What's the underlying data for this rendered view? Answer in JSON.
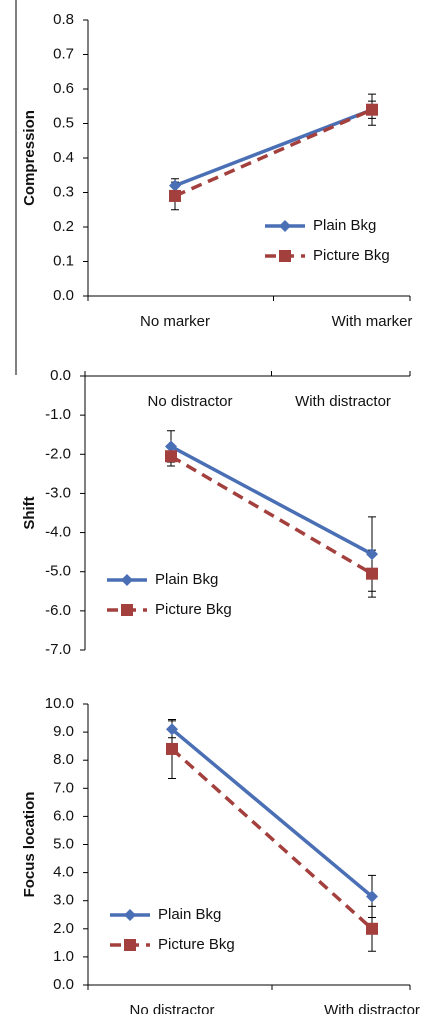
{
  "chart_data": [
    {
      "type": "line",
      "y_label": "Compression",
      "categories": [
        "No marker",
        "With marker"
      ],
      "ylim": [
        0,
        0.8
      ],
      "yticks": [
        {
          "value": 0,
          "label": "0.0"
        },
        0.1,
        0.2,
        0.3,
        0.4,
        0.5,
        0.6,
        0.7,
        0.8
      ],
      "xaxis_position": "bottom",
      "legend": "lower right",
      "series": [
        {
          "name": "Plain Bkg",
          "color": "#4a6fb5",
          "dashed": false,
          "marker": "diamond",
          "values": [
            0.32,
            0.54
          ],
          "errors": [
            0.02,
            0.045
          ]
        },
        {
          "name": "Picture Bkg",
          "color": "#a3403d",
          "dashed": true,
          "marker": "square",
          "values": [
            0.29,
            0.54
          ],
          "errors": [
            0.04,
            0.025
          ]
        }
      ]
    },
    {
      "type": "line",
      "y_label": "Shift",
      "categories": [
        "No distractor",
        "With distractor"
      ],
      "ylim": [
        -7,
        0
      ],
      "yticks": [
        {
          "value": 0,
          "label": "0.0"
        },
        {
          "value": -1,
          "label": "-1.0"
        },
        {
          "value": -2,
          "label": "-2.0"
        },
        {
          "value": -3,
          "label": "-3.0"
        },
        {
          "value": -4,
          "label": "-4.0"
        },
        {
          "value": -5,
          "label": "-5.0"
        },
        {
          "value": -6,
          "label": "-6.0"
        },
        {
          "value": -7,
          "label": "-7.0"
        }
      ],
      "xaxis_position": "top",
      "legend": "lower left",
      "series": [
        {
          "name": "Plain Bkg",
          "color": "#4a6fb5",
          "dashed": false,
          "marker": "diamond",
          "values": [
            -1.8,
            -4.55
          ],
          "errors": [
            0.4,
            0.95
          ]
        },
        {
          "name": "Picture Bkg",
          "color": "#a3403d",
          "dashed": true,
          "marker": "square",
          "values": [
            -2.05,
            -5.05
          ],
          "errors": [
            0.25,
            0.6
          ]
        }
      ]
    },
    {
      "type": "line",
      "y_label": "Focus location",
      "categories": [
        "No distractor",
        "With distractor"
      ],
      "ylim": [
        0,
        10
      ],
      "yticks": [
        {
          "value": 0,
          "label": "0.0"
        },
        {
          "value": 1,
          "label": "1.0"
        },
        {
          "value": 2,
          "label": "2.0"
        },
        {
          "value": 3,
          "label": "3.0"
        },
        {
          "value": 4,
          "label": "4.0"
        },
        {
          "value": 5,
          "label": "5.0"
        },
        {
          "value": 6,
          "label": "6.0"
        },
        {
          "value": 7,
          "label": "7.0"
        },
        {
          "value": 8,
          "label": "8.0"
        },
        {
          "value": 9,
          "label": "9.0"
        },
        {
          "value": 10,
          "label": "10.0"
        }
      ],
      "xaxis_position": "bottom",
      "legend": "lower left",
      "series": [
        {
          "name": "Plain Bkg",
          "color": "#4a6fb5",
          "dashed": false,
          "marker": "diamond",
          "values": [
            9.1,
            3.15
          ],
          "errors": [
            0.3,
            0.75
          ]
        },
        {
          "name": "Picture Bkg",
          "color": "#a3403d",
          "dashed": true,
          "marker": "square",
          "values": [
            8.4,
            2.0
          ],
          "errors": [
            1.05,
            0.8
          ]
        }
      ]
    }
  ]
}
